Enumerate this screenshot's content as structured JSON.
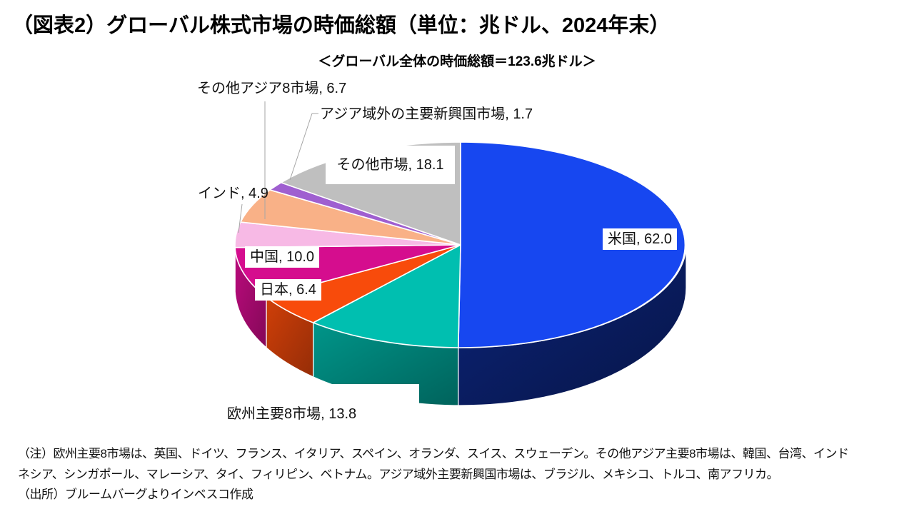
{
  "title": "（図表2）グローバル株式市場の時価総額（単位：兆ドル、2024年末）",
  "chart_data": {
    "type": "pie",
    "style": "3d",
    "title": "＜グローバル全体の時価総額＝123.6兆ドル＞",
    "total": 123.6,
    "unit": "兆ドル",
    "start": "12-oclock",
    "direction": "clockwise",
    "legend_position": "none",
    "label_format": "label, value",
    "slices": [
      {
        "label": "米国",
        "value": 62.0,
        "color": "#1747F0"
      },
      {
        "label": "欧州主要8市場",
        "value": 13.8,
        "color": "#00BFB0"
      },
      {
        "label": "日本",
        "value": 6.4,
        "color": "#F84B0B"
      },
      {
        "label": "中国",
        "value": 10.0,
        "color": "#D50D8E"
      },
      {
        "label": "インド",
        "value": 4.9,
        "color": "#F7B9E5"
      },
      {
        "label": "その他アジア8市場",
        "value": 6.7,
        "color": "#F9B187"
      },
      {
        "label": "アジア域外の主要新興国市場",
        "value": 1.7,
        "color": "#9F5FD0"
      },
      {
        "label": "その他市場",
        "value": 18.1,
        "color": "#BFBFBF"
      }
    ]
  },
  "notes": [
    "（注）欧州主要8市場は、英国、ドイツ、フランス、イタリア、スペイン、オランダ、スイス、スウェーデン。その他アジア主要8市場は、韓国、台湾、インド",
    "ネシア、シンガポール、マレーシア、タイ、フィリピン、ベトナム。アジア域外主要新興国市場は、ブラジル、メキシコ、トルコ、南アフリカ。",
    "（出所）ブルームバーグよりインベスコ作成"
  ]
}
